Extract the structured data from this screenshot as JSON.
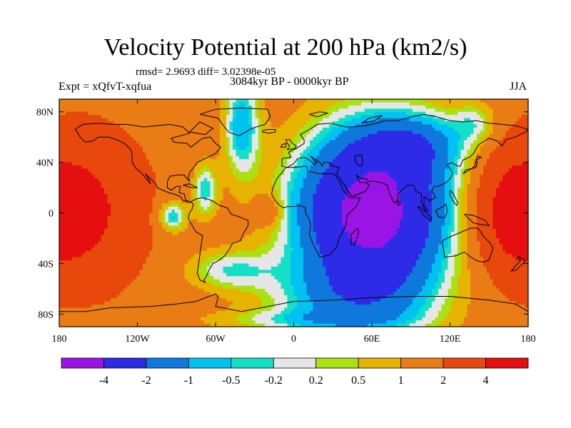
{
  "title": "Velocity Potential at 200 hPa (km2/s)",
  "stats_text": "rmsd= 2.9693 diff= 3.02398e-05",
  "left_label": "Expt = xQfvT-xqfua",
  "center_label": "3084kyr BP - 0000kyr BP",
  "right_label": "JJA",
  "chart_data": {
    "type": "heatmap",
    "title": "Velocity Potential at 200 hPa (km2/s)",
    "subtitle": "3084kyr BP - 0000kyr BP",
    "xlim": [
      -180,
      180
    ],
    "ylim": [
      -90,
      90
    ],
    "x_ticks": [
      {
        "value": -180,
        "label": "180"
      },
      {
        "value": -120,
        "label": "120W"
      },
      {
        "value": -60,
        "label": "60W"
      },
      {
        "value": 0,
        "label": "0"
      },
      {
        "value": 60,
        "label": "60E"
      },
      {
        "value": 120,
        "label": "120E"
      },
      {
        "value": 180,
        "label": "180"
      }
    ],
    "y_ticks": [
      {
        "value": 80,
        "label": "80N"
      },
      {
        "value": 40,
        "label": "40N"
      },
      {
        "value": 0,
        "label": "0"
      },
      {
        "value": -40,
        "label": "40S"
      },
      {
        "value": -80,
        "label": "80S"
      }
    ],
    "contour_levels": [
      "-4",
      "-2",
      "-1",
      "-0.5",
      "-0.2",
      "0.2",
      "0.5",
      "1",
      "2",
      "4"
    ],
    "colors": [
      "#9a14e6",
      "#2d2be8",
      "#0f78dc",
      "#00c2f2",
      "#14e0c7",
      "#e6e6e6",
      "#aae113",
      "#e6b400",
      "#e97c14",
      "#e8480c",
      "#e60f0f"
    ],
    "field_centers": [
      {
        "lon": 60,
        "lat": 5,
        "value": -4.5,
        "note": "deep minimum over Africa / Middle East / Indian Ocean"
      },
      {
        "lon": -90,
        "lat": -5,
        "value": -0.6,
        "note": "weak low off northwest South America"
      },
      {
        "lon": -160,
        "lat": 0,
        "value": 4.3,
        "note": "maximum over central Pacific"
      },
      {
        "lon": 160,
        "lat": 0,
        "value": 4.3,
        "note": "maximum over western Pacific"
      },
      {
        "lon": -20,
        "lat": 0,
        "value": 3.0,
        "note": "maximum over eastern tropical Atlantic"
      }
    ]
  }
}
